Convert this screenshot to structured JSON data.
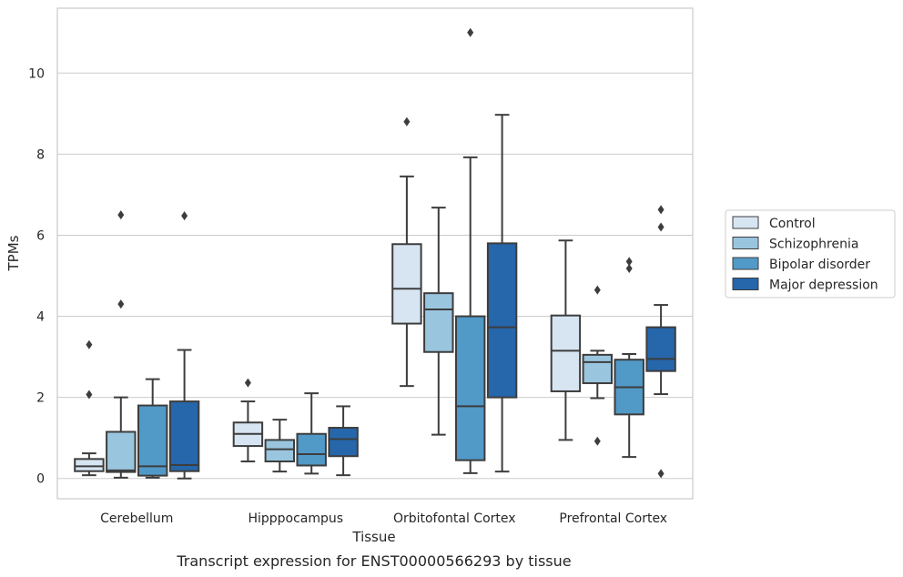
{
  "chart_data": {
    "type": "box",
    "title": "",
    "caption": "Transcript expression for ENST00000566293 by tissue",
    "xlabel": "Tissue",
    "ylabel": "TPMs",
    "ylim": [
      -0.5,
      11.6
    ],
    "yticks": [
      0,
      2,
      4,
      6,
      8,
      10
    ],
    "grid": true,
    "legend_position": "right",
    "categories": [
      "Cerebellum",
      "Hipppocampus",
      "Orbitofontal Cortex",
      "Prefrontal Cortex"
    ],
    "series": [
      {
        "name": "Control",
        "color": "#d7e5f3",
        "boxes": [
          {
            "whislo": 0.08,
            "q1": 0.18,
            "median": 0.3,
            "q3": 0.48,
            "whishi": 0.62,
            "fliers": [
              2.07,
              3.3
            ]
          },
          {
            "whislo": 0.42,
            "q1": 0.8,
            "median": 1.1,
            "q3": 1.38,
            "whishi": 1.9,
            "fliers": [
              2.36
            ]
          },
          {
            "whislo": 2.28,
            "q1": 3.82,
            "median": 4.68,
            "q3": 5.78,
            "whishi": 7.45,
            "fliers": [
              8.8
            ]
          },
          {
            "whislo": 0.95,
            "q1": 2.15,
            "median": 3.15,
            "q3": 4.02,
            "whishi": 5.87,
            "fliers": []
          }
        ]
      },
      {
        "name": "Schizophrenia",
        "color": "#9ac5df",
        "boxes": [
          {
            "whislo": 0.02,
            "q1": 0.16,
            "median": 0.2,
            "q3": 1.15,
            "whishi": 2.0,
            "fliers": [
              4.3,
              6.5
            ]
          },
          {
            "whislo": 0.17,
            "q1": 0.42,
            "median": 0.72,
            "q3": 0.95,
            "whishi": 1.45,
            "fliers": []
          },
          {
            "whislo": 1.08,
            "q1": 3.12,
            "median": 4.17,
            "q3": 4.57,
            "whishi": 6.68,
            "fliers": []
          },
          {
            "whislo": 1.98,
            "q1": 2.35,
            "median": 2.87,
            "q3": 3.05,
            "whishi": 3.15,
            "fliers": [
              0.92,
              4.65
            ]
          }
        ]
      },
      {
        "name": "Bipolar disorder",
        "color": "#5199c7",
        "boxes": [
          {
            "whislo": 0.02,
            "q1": 0.07,
            "median": 0.3,
            "q3": 1.8,
            "whishi": 2.45,
            "fliers": []
          },
          {
            "whislo": 0.12,
            "q1": 0.32,
            "median": 0.6,
            "q3": 1.1,
            "whishi": 2.1,
            "fliers": []
          },
          {
            "whislo": 0.13,
            "q1": 0.45,
            "median": 1.78,
            "q3": 4.0,
            "whishi": 7.92,
            "fliers": [
              11.0
            ]
          },
          {
            "whislo": 0.53,
            "q1": 1.58,
            "median": 2.25,
            "q3": 2.93,
            "whishi": 3.07,
            "fliers": [
              5.18,
              5.35
            ]
          }
        ]
      },
      {
        "name": "Major depression",
        "color": "#2666ab",
        "boxes": [
          {
            "whislo": 0.0,
            "q1": 0.18,
            "median": 0.33,
            "q3": 1.9,
            "whishi": 3.17,
            "fliers": [
              6.48
            ]
          },
          {
            "whislo": 0.08,
            "q1": 0.55,
            "median": 0.97,
            "q3": 1.25,
            "whishi": 1.78,
            "fliers": []
          },
          {
            "whislo": 0.17,
            "q1": 2.0,
            "median": 3.73,
            "q3": 5.8,
            "whishi": 8.97,
            "fliers": []
          },
          {
            "whislo": 2.08,
            "q1": 2.65,
            "median": 2.95,
            "q3": 3.73,
            "whishi": 4.28,
            "fliers": [
              0.12,
              6.2,
              6.63
            ]
          }
        ]
      }
    ]
  }
}
